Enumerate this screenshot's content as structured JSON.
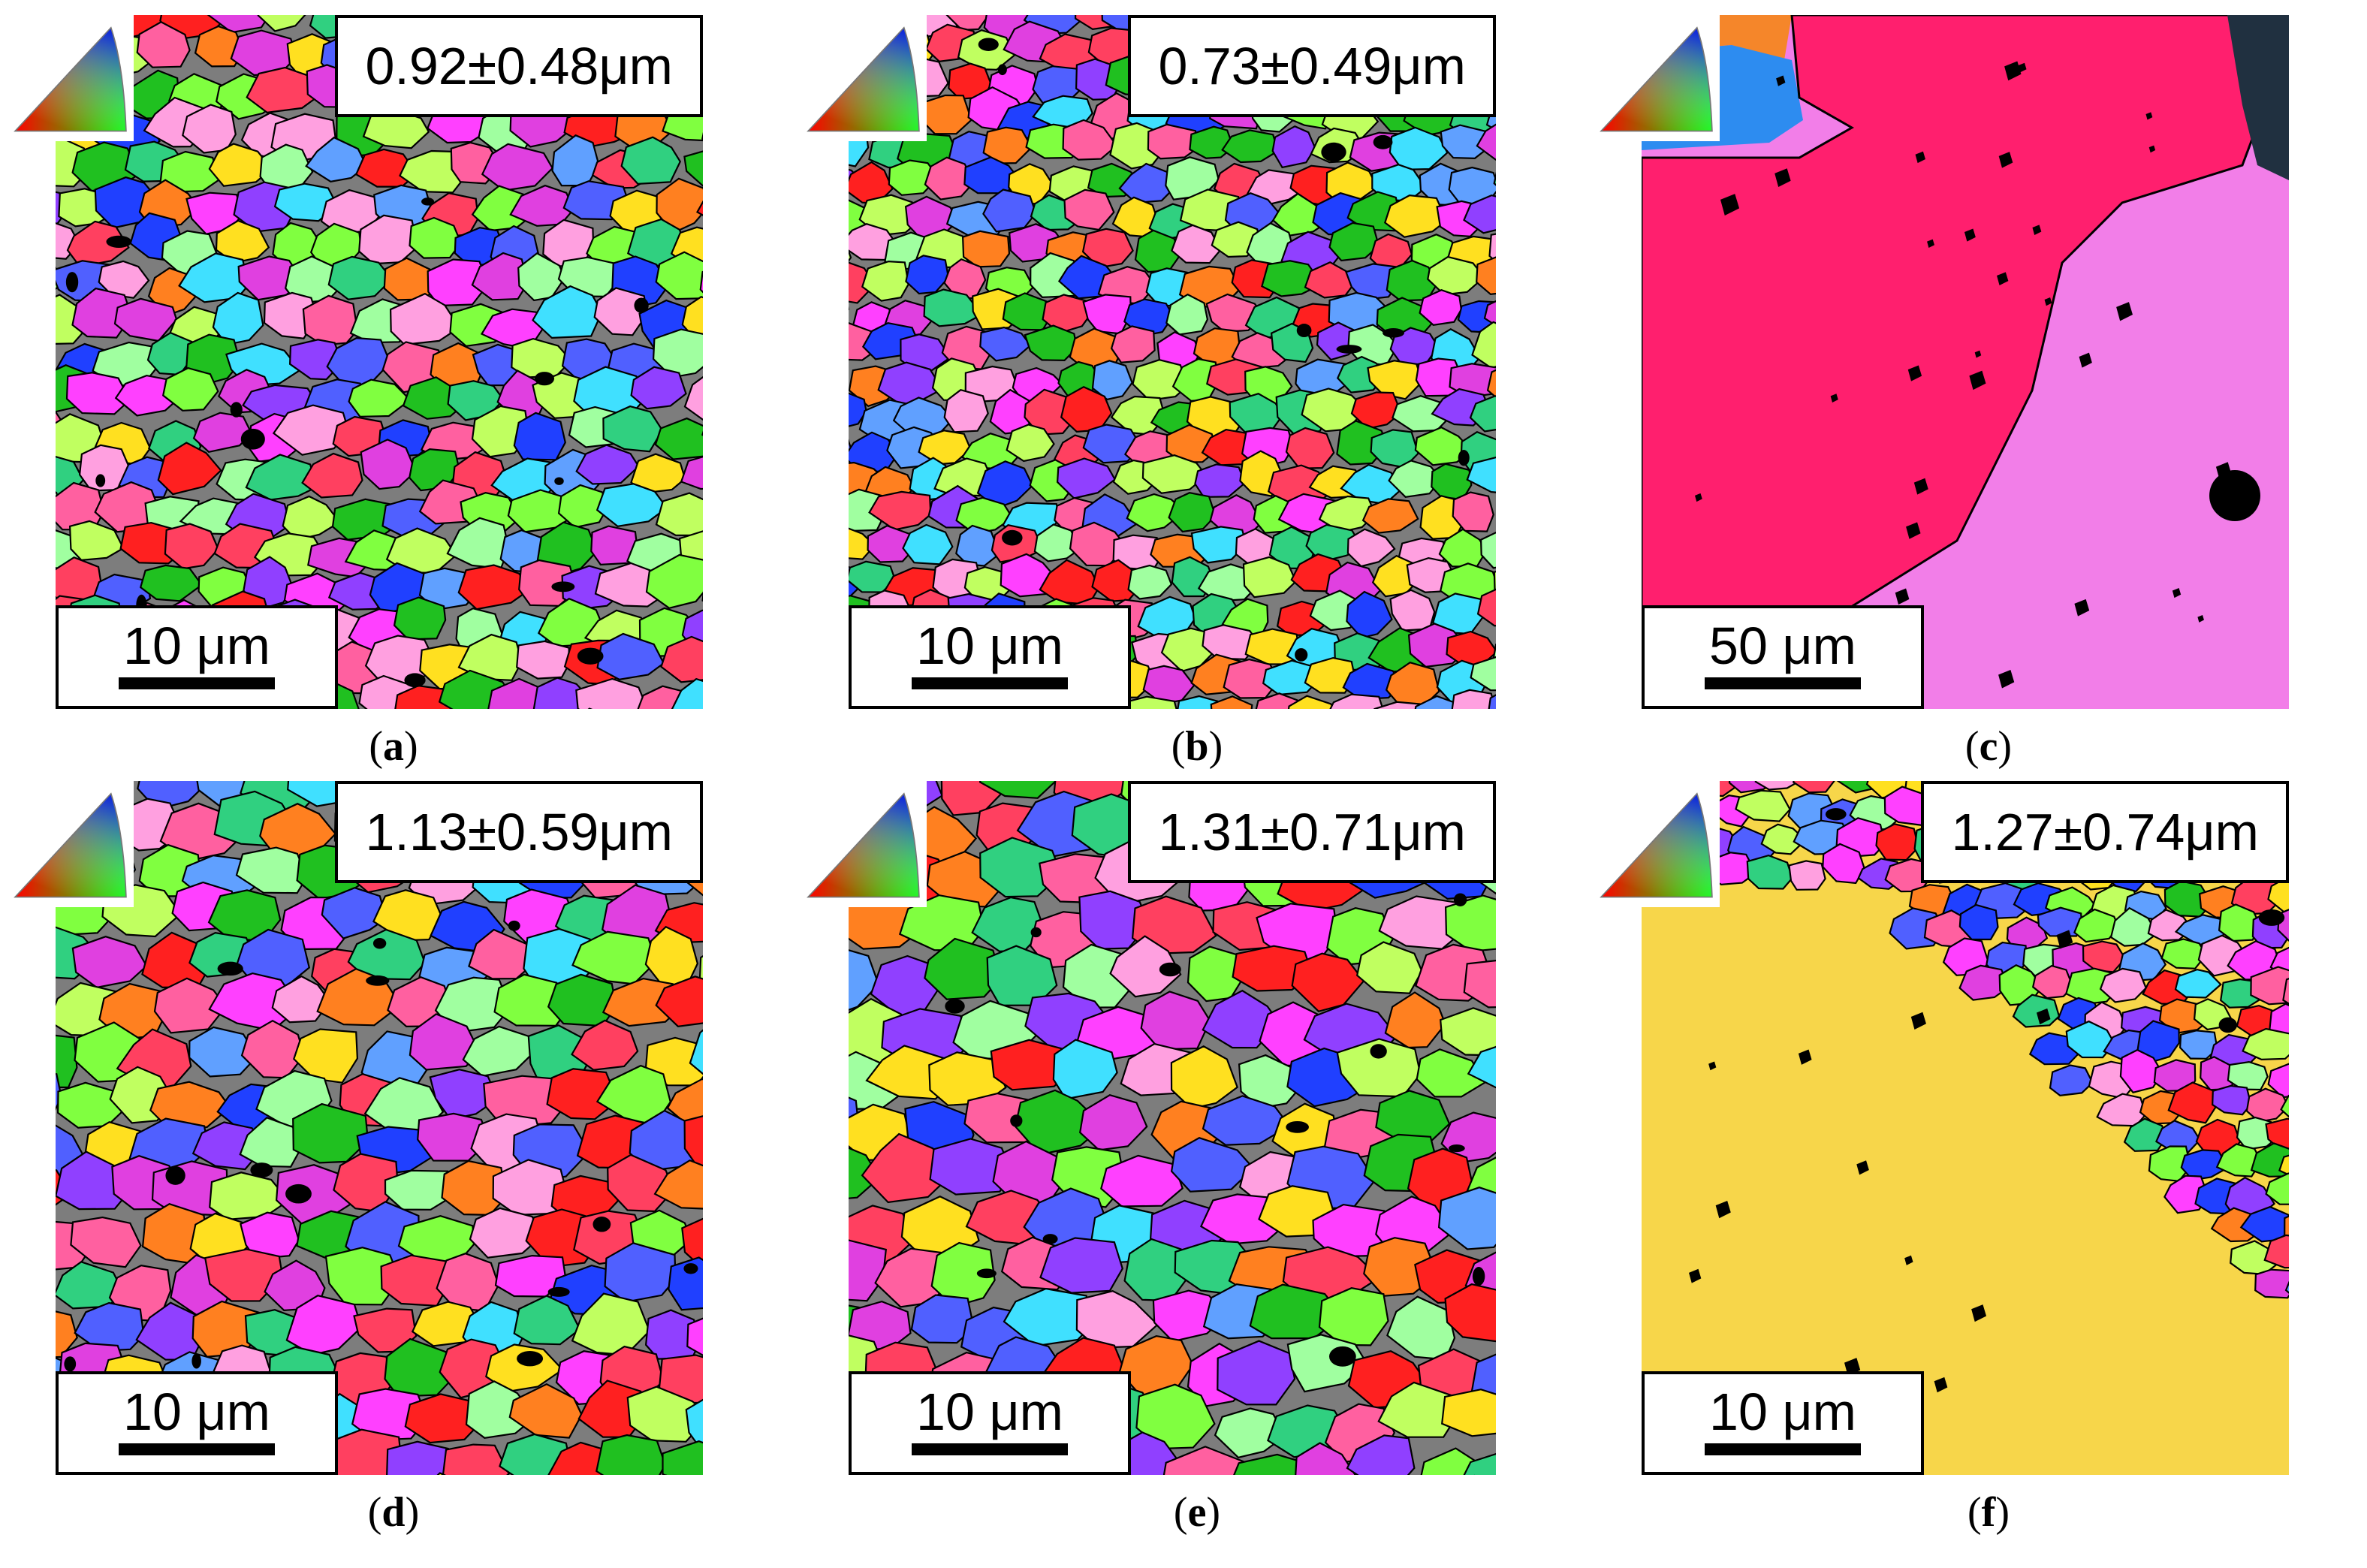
{
  "panels": [
    {
      "letter": "a",
      "stat_label": "0.92±0.48μm",
      "scale_label": "10 μm",
      "texture": "fine-multicolor"
    },
    {
      "letter": "b",
      "stat_label": "0.73±0.49μm",
      "scale_label": "10 μm",
      "texture": "fine-multicolor"
    },
    {
      "letter": "c",
      "stat_label": "",
      "scale_label": "50 μm",
      "texture": "coarse-pink"
    },
    {
      "letter": "d",
      "stat_label": "1.13±0.59μm",
      "scale_label": "10 μm",
      "texture": "fine-multicolor"
    },
    {
      "letter": "e",
      "stat_label": "1.31±0.71μm",
      "scale_label": "10 μm",
      "texture": "fine-multicolor"
    },
    {
      "letter": "f",
      "stat_label": "1.27±0.74μm",
      "scale_label": "10 μm",
      "texture": "yellow-grain-with-fine-edge"
    }
  ],
  "colors": {
    "boundary": "#000000",
    "coarse_grain": "#ff1f6e",
    "coarse_matrix": "#f27ee8",
    "upper_left_grain": "#f5862a",
    "blue_grain": "#2d8cf0",
    "yellow_grain": "#f7d64a"
  },
  "palette": [
    "#ff2020",
    "#20c020",
    "#2040ff",
    "#ff40ff",
    "#40e0ff",
    "#ffe020",
    "#ff8020",
    "#9040ff",
    "#80ff40",
    "#ff60a0",
    "#60a0ff",
    "#c0ff60",
    "#e040e0",
    "#30d080",
    "#ff4060",
    "#5060ff",
    "#a0ffa0",
    "#ffa0e0"
  ]
}
